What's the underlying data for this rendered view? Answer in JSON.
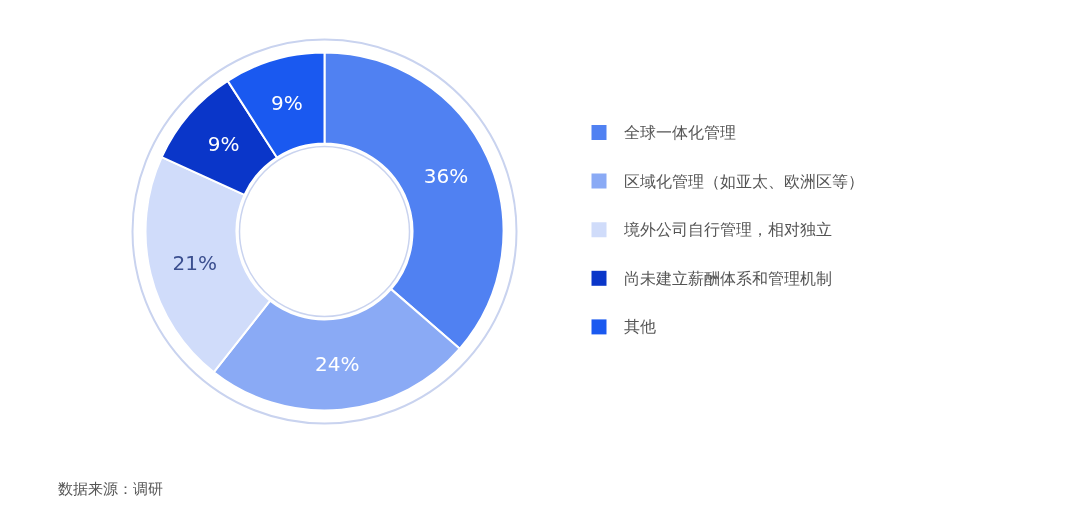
{
  "chart_data": {
    "type": "donut",
    "categories": [
      "全球一体化管理",
      "区域化管理（如亚太、欧洲区等）",
      "境外公司自行管理，相对独立",
      "尚未建立薪酬体系和管理机制",
      "其他"
    ],
    "values": [
      36,
      24,
      21,
      9,
      9
    ],
    "colors": [
      "#5081f2",
      "#8aaaf5",
      "#d0dcfa",
      "#0a36c9",
      "#1a59f0"
    ],
    "value_labels": [
      "36%",
      "24%",
      "21%",
      "9%",
      "9%"
    ],
    "legend": "right",
    "annotations": [
      "数据来源：调研"
    ]
  }
}
